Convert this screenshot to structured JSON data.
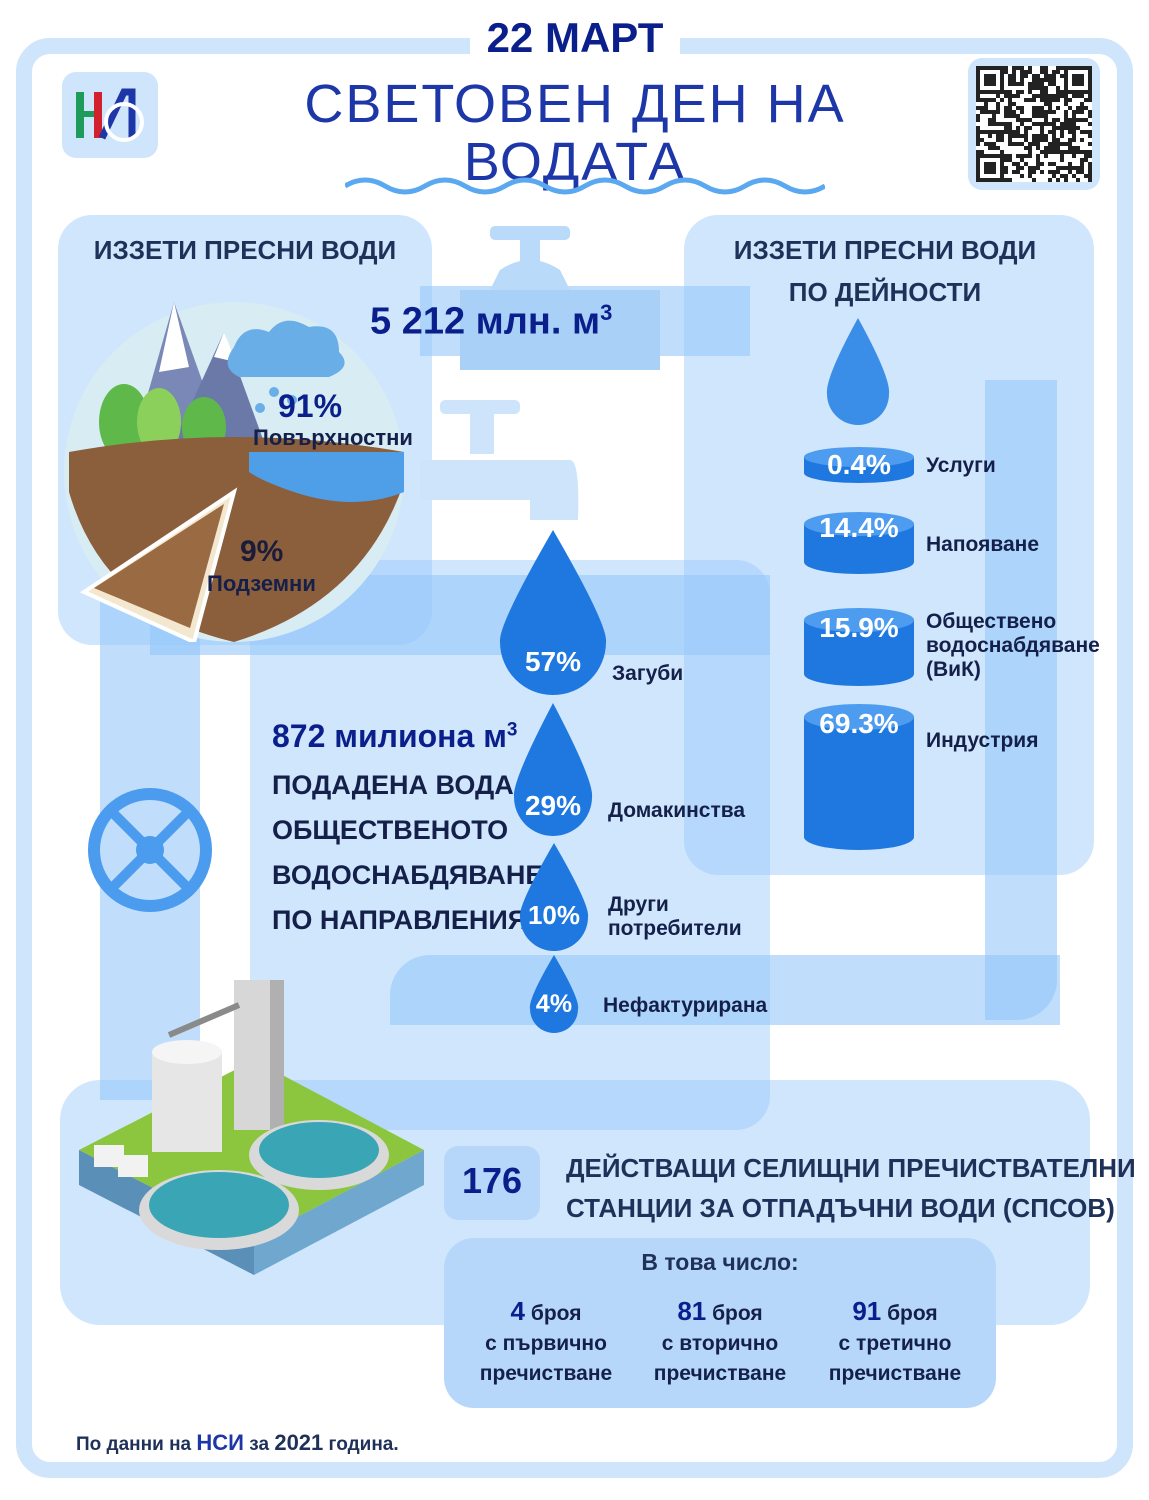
{
  "header": {
    "date": "22 МАРТ",
    "title_line1": "СВЕТОВЕН ДЕН НА",
    "title_line2": "ВОДАТА",
    "logo": "НСИ"
  },
  "left_panel": {
    "title": "ИЗЗЕТИ ПРЕСНИ ВОДИ",
    "surface_pct": "91%",
    "surface_label": "Повърхностни",
    "ground_pct": "9%",
    "ground_label": "Подземни"
  },
  "total": {
    "value": "5 212 млн. м",
    "sup": "3"
  },
  "right_panel": {
    "title_line1": "ИЗЗЕТИ ПРЕСНИ ВОДИ",
    "title_line2": "ПО ДЕЙНОСТИ",
    "items": [
      {
        "pct": "0.4%",
        "label": "Услуги"
      },
      {
        "pct": "14.4%",
        "label": "Напояване"
      },
      {
        "pct": "15.9%",
        "label_line1": "Обществено",
        "label_line2": "водоснабдяване",
        "label_line3": "(ВиК)"
      },
      {
        "pct": "69.3%",
        "label": "Индустрия"
      }
    ]
  },
  "supply": {
    "value": "872 милиона м",
    "sup": "3",
    "line1": "ПОДАДЕНА ВОДА ОТ",
    "line2": "ОБЩЕСТВЕНОТО",
    "line3": "ВОДОСНАБДЯВАНЕ",
    "line4": "ПО НАПРАВЛЕНИЯ",
    "drops": [
      {
        "pct": "57%",
        "label": "Загуби"
      },
      {
        "pct": "29%",
        "label": "Домакинства"
      },
      {
        "pct": "10%",
        "label_line1": "Други",
        "label_line2": "потребители"
      },
      {
        "pct": "4%",
        "label": "Нефактурирана"
      }
    ]
  },
  "stations": {
    "count": "176",
    "line1": "ДЕЙСТВАЩИ СЕЛИЩНИ ПРЕЧИСТВАТЕЛНИ",
    "line2": "СТАНЦИИ ЗА ОТПАДЪЧНИ ВОДИ (СПСОВ)",
    "including": "В това число:",
    "breakdown": [
      {
        "num": "4",
        "unit": "броя",
        "line1": "с първично",
        "line2": "пречистване"
      },
      {
        "num": "81",
        "unit": "броя",
        "line1": "с вторично",
        "line2": "пречистване"
      },
      {
        "num": "91",
        "unit": "броя",
        "line1": "с третично",
        "line2": "пречистване"
      }
    ]
  },
  "footer": {
    "p1": "По данни на ",
    "p2": "НСИ",
    "p3": " за ",
    "p4": "2021",
    "p5": " година."
  }
}
